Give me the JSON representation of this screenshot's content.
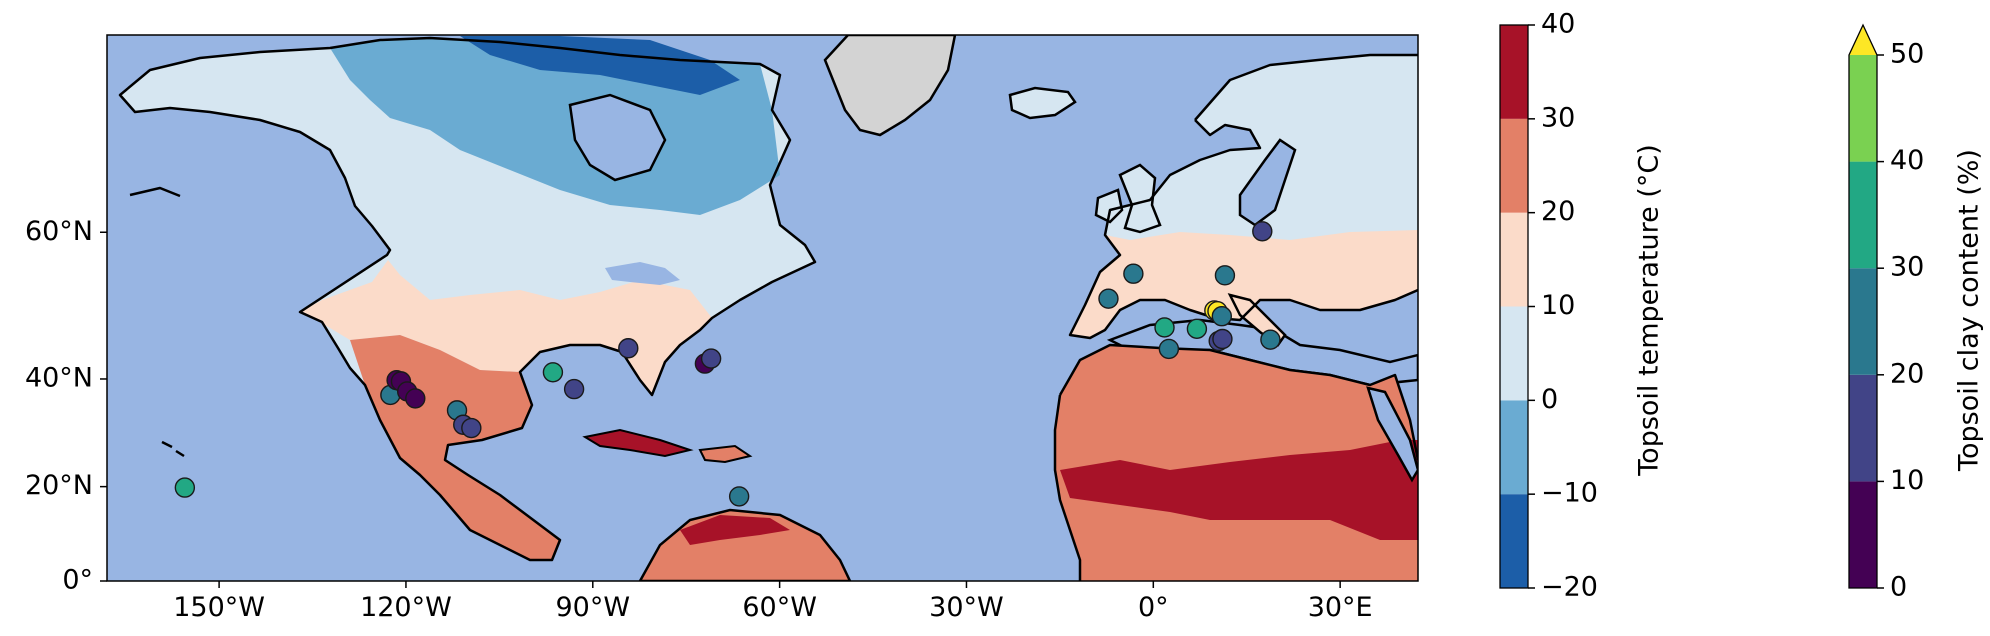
{
  "map": {
    "x_ticks": [
      "150°W",
      "120°W",
      "90°W",
      "60°W",
      "30°W",
      "0°",
      "30°E"
    ],
    "y_ticks": [
      "60°N",
      "40°N",
      "20°N",
      "0°"
    ],
    "colors": {
      "ocean": "#98b5e3",
      "greenland": "#d3d3d3",
      "coastline": "#000000",
      "lakes": "#98b5e3"
    }
  },
  "temperature_colorbar": {
    "label": "Topsoil temperature (°C)",
    "ticks": [
      "40",
      "30",
      "20",
      "10",
      "0",
      "−10",
      "−20"
    ],
    "bands": [
      {
        "range": [
          -20,
          -10
        ],
        "color": "#1c5ea8"
      },
      {
        "range": [
          -10,
          0
        ],
        "color": "#6aabd2"
      },
      {
        "range": [
          0,
          10
        ],
        "color": "#d6e6f1"
      },
      {
        "range": [
          10,
          20
        ],
        "color": "#fbdbc9"
      },
      {
        "range": [
          20,
          30
        ],
        "color": "#e38067"
      },
      {
        "range": [
          30,
          40
        ],
        "color": "#a71228"
      }
    ]
  },
  "clay_colorbar": {
    "label": "Topsoil clay content (%)",
    "ticks": [
      "50",
      "40",
      "30",
      "20",
      "10",
      "0"
    ],
    "bands": [
      {
        "range": [
          0,
          10
        ],
        "color": "#440154"
      },
      {
        "range": [
          10,
          20
        ],
        "color": "#414487"
      },
      {
        "range": [
          20,
          30
        ],
        "color": "#2a788e"
      },
      {
        "range": [
          30,
          40
        ],
        "color": "#22a884"
      },
      {
        "range": [
          40,
          50
        ],
        "color": "#7ad151"
      }
    ],
    "extend_color": "#fde725"
  },
  "sites": [
    {
      "lon": -155.5,
      "lat": 19.8,
      "clay": 35
    },
    {
      "lon": -122.5,
      "lat": 37.3,
      "clay": 25
    },
    {
      "lon": -121.5,
      "lat": 39.8,
      "clay": 5
    },
    {
      "lon": -120.8,
      "lat": 39.6,
      "clay": 5
    },
    {
      "lon": -119.8,
      "lat": 37.9,
      "clay": 5
    },
    {
      "lon": -118.5,
      "lat": 36.7,
      "clay": 5
    },
    {
      "lon": -111.8,
      "lat": 34.6,
      "clay": 25
    },
    {
      "lon": -110.8,
      "lat": 32.0,
      "clay": 15
    },
    {
      "lon": -109.5,
      "lat": 31.4,
      "clay": 15
    },
    {
      "lon": -96.4,
      "lat": 41.1,
      "clay": 35
    },
    {
      "lon": -93.0,
      "lat": 38.3,
      "clay": 15
    },
    {
      "lon": -84.3,
      "lat": 44.9,
      "clay": 15
    },
    {
      "lon": -72.0,
      "lat": 42.5,
      "clay": 5
    },
    {
      "lon": -71.0,
      "lat": 43.3,
      "clay": 15
    },
    {
      "lon": -66.5,
      "lat": 18.0,
      "clay": 25
    },
    {
      "lon": -7.2,
      "lat": 52.0,
      "clay": 25
    },
    {
      "lon": -3.2,
      "lat": 55.2,
      "clay": 25
    },
    {
      "lon": 1.8,
      "lat": 48.0,
      "clay": 35
    },
    {
      "lon": 2.5,
      "lat": 44.8,
      "clay": 25
    },
    {
      "lon": 7.0,
      "lat": 47.8,
      "clay": 35
    },
    {
      "lon": 9.8,
      "lat": 50.4,
      "clay": 55
    },
    {
      "lon": 10.3,
      "lat": 50.3,
      "clay": 55
    },
    {
      "lon": 11.0,
      "lat": 49.6,
      "clay": 25
    },
    {
      "lon": 10.5,
      "lat": 46.0,
      "clay": 15
    },
    {
      "lon": 11.1,
      "lat": 46.3,
      "clay": 15
    },
    {
      "lon": 11.5,
      "lat": 55.0,
      "clay": 25
    },
    {
      "lon": 17.5,
      "lat": 60.1,
      "clay": 15
    },
    {
      "lon": 18.8,
      "lat": 46.2,
      "clay": 25
    }
  ]
}
